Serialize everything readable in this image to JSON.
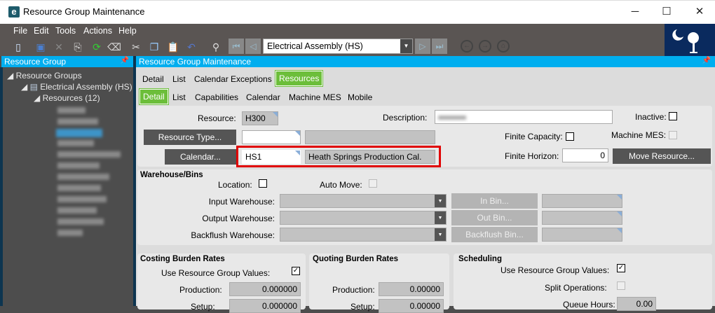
{
  "window": {
    "title": "Resource Group Maintenance",
    "app_icon": "e",
    "minimize": "─",
    "maximize": "☐",
    "close": "✕"
  },
  "menu": [
    "File",
    "Edit",
    "Tools",
    "Actions",
    "Help"
  ],
  "toolbar": {
    "record_combo": "Electrical Assembly (HS)"
  },
  "sidebar": {
    "title": "Resource Group",
    "tree": {
      "root": "Resource Groups",
      "group": "Electrical Assembly (HS)",
      "resources": "Resources (12)"
    }
  },
  "main": {
    "title": "Resource Group Maintenance",
    "tabs": [
      "Detail",
      "List",
      "Calendar Exceptions",
      "Resources"
    ],
    "active_tab": "Resources",
    "subtabs": [
      "Detail",
      "List",
      "Capabilities",
      "Calendar",
      "Machine MES",
      "Mobile"
    ],
    "active_subtab": "Detail",
    "form": {
      "resource_label": "Resource:",
      "resource_value": "H300",
      "description_label": "Description:",
      "inactive_label": "Inactive:",
      "resource_type_button": "Resource Type...",
      "finite_capacity_label": "Finite Capacity:",
      "machine_mes_label": "Machine MES:",
      "calendar_button": "Calendar...",
      "calendar_code": "HS1",
      "calendar_name": "Heath Springs Production Cal.",
      "finite_horizon_label": "Finite Horizon:",
      "finite_horizon_value": "0",
      "move_resource_button": "Move Resource..."
    },
    "warehouse": {
      "title": "Warehouse/Bins",
      "location_label": "Location:",
      "auto_move_label": "Auto Move:",
      "input_label": "Input Warehouse:",
      "output_label": "Output Warehouse:",
      "backflush_label": "Backflush Warehouse:",
      "in_bin": "In Bin...",
      "out_bin": "Out Bin...",
      "backflush_bin": "Backflush Bin..."
    },
    "costing": {
      "title": "Costing Burden Rates",
      "use_group_label": "Use Resource Group Values:",
      "use_group_checked": true,
      "production_label": "Production:",
      "production_value": "0.000000",
      "setup_label": "Setup:",
      "setup_value": "0.000000"
    },
    "quoting": {
      "title": "Quoting Burden Rates",
      "production_label": "Production:",
      "production_value": "0.00000",
      "setup_label": "Setup:",
      "setup_value": "0.00000"
    },
    "scheduling": {
      "title": "Scheduling",
      "use_group_label": "Use Resource Group Values:",
      "use_group_checked": true,
      "split_label": "Split Operations:",
      "queue_label": "Queue Hours:",
      "queue_value": "0.00"
    }
  },
  "colors": {
    "accent": "#00aeef",
    "active_tab": "#6cbe3a",
    "highlight": "#e00000"
  }
}
